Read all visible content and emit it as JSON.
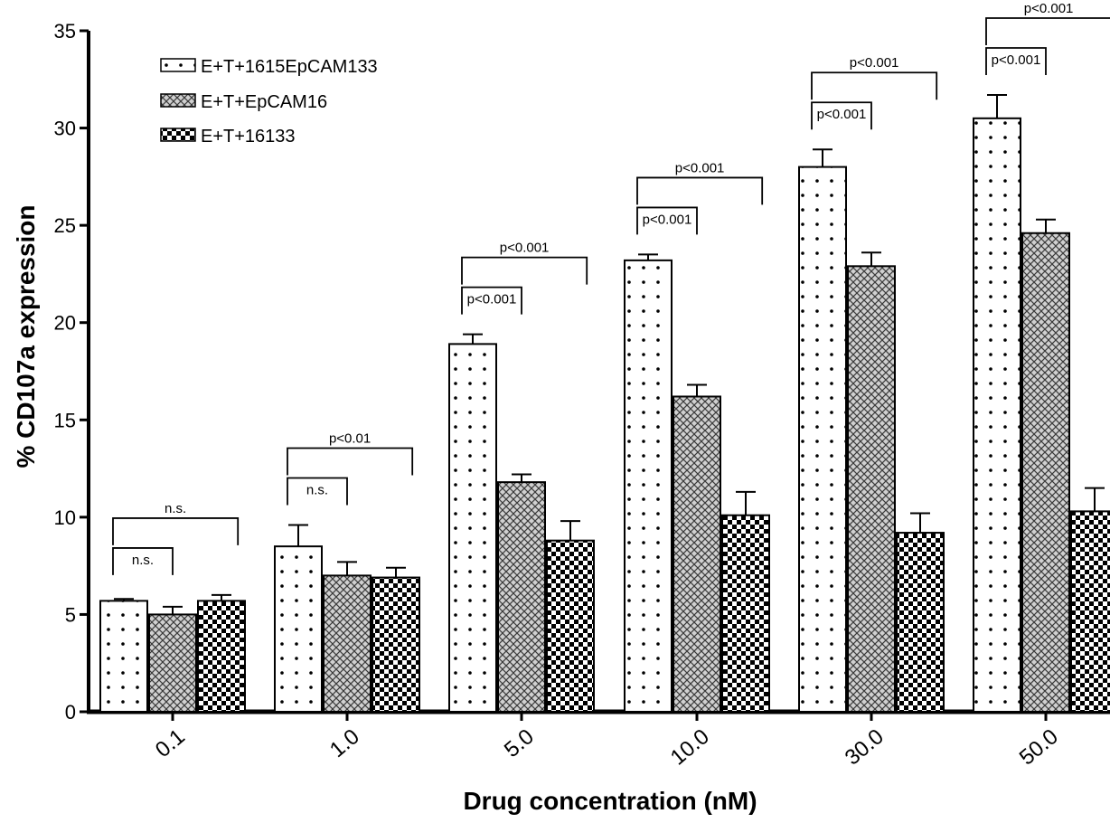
{
  "chart_data": {
    "type": "bar",
    "title": "",
    "xlabel": "Drug concentration (nM)",
    "ylabel": "% CD107a expression",
    "ylim": [
      0,
      35
    ],
    "yticks": [
      0,
      5,
      10,
      15,
      20,
      25,
      30,
      35
    ],
    "categories": [
      "0.1",
      "1.0",
      "5.0",
      "10.0",
      "30.0",
      "50.0"
    ],
    "legend_position": "top-left",
    "grid": false,
    "series": [
      {
        "name": "E+T+1615EpCAM133",
        "pattern": "dots",
        "values": [
          5.7,
          8.5,
          18.9,
          23.2,
          28.0,
          30.5
        ],
        "errors": [
          0.1,
          1.1,
          0.5,
          0.3,
          0.9,
          1.2
        ]
      },
      {
        "name": "E+T+EpCAM16",
        "pattern": "crosshatch",
        "values": [
          5.0,
          7.0,
          11.8,
          16.2,
          22.9,
          24.6
        ],
        "errors": [
          0.4,
          0.7,
          0.4,
          0.6,
          0.7,
          0.7
        ]
      },
      {
        "name": "E+T+16133",
        "pattern": "checker",
        "values": [
          5.7,
          6.9,
          8.8,
          10.1,
          9.2,
          10.3
        ],
        "errors": [
          0.3,
          0.5,
          1.0,
          1.2,
          1.0,
          1.2
        ]
      }
    ],
    "significance": [
      {
        "inner": "n.s.",
        "outer": "n.s."
      },
      {
        "inner": "n.s.",
        "outer": "p<0.01"
      },
      {
        "inner": "p<0.001",
        "outer": "p<0.001"
      },
      {
        "inner": "p<0.001",
        "outer": "p<0.001"
      },
      {
        "inner": "p<0.001",
        "outer": "p<0.001"
      },
      {
        "inner": "p<0.001",
        "outer": "p<0.001"
      }
    ]
  }
}
